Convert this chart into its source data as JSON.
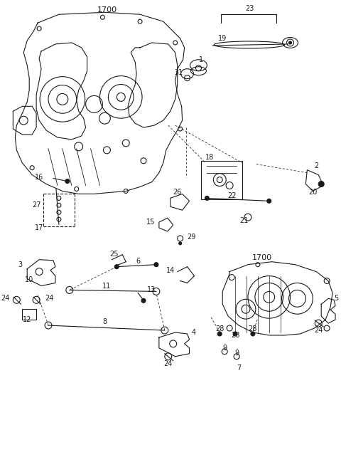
{
  "bg_color": "#ffffff",
  "line_color": "#1a1a1a",
  "fig_width": 4.8,
  "fig_height": 6.56,
  "dpi": 100
}
